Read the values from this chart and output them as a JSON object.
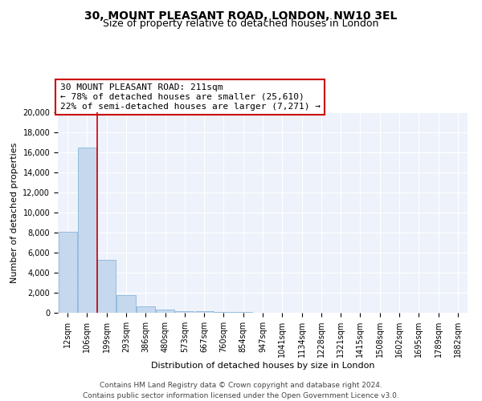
{
  "title": "30, MOUNT PLEASANT ROAD, LONDON, NW10 3EL",
  "subtitle": "Size of property relative to detached houses in London",
  "xlabel": "Distribution of detached houses by size in London",
  "ylabel": "Number of detached properties",
  "bar_color": "#c5d8ee",
  "bar_edge_color": "#7aaed4",
  "categories": [
    "12sqm",
    "106sqm",
    "199sqm",
    "293sqm",
    "386sqm",
    "480sqm",
    "573sqm",
    "667sqm",
    "760sqm",
    "854sqm",
    "947sqm",
    "1041sqm",
    "1134sqm",
    "1228sqm",
    "1321sqm",
    "1415sqm",
    "1508sqm",
    "1602sqm",
    "1695sqm",
    "1789sqm",
    "1882sqm"
  ],
  "values": [
    8100,
    16500,
    5300,
    1800,
    650,
    320,
    180,
    140,
    100,
    80,
    0,
    0,
    0,
    0,
    0,
    0,
    0,
    0,
    0,
    0,
    0
  ],
  "ylim": [
    0,
    20000
  ],
  "yticks": [
    0,
    2000,
    4000,
    6000,
    8000,
    10000,
    12000,
    14000,
    16000,
    18000,
    20000
  ],
  "vline_x_index": 2,
  "vline_color": "#cc0000",
  "annotation_line1": "30 MOUNT PLEASANT ROAD: 211sqm",
  "annotation_line2": "← 78% of detached houses are smaller (25,610)",
  "annotation_line3": "22% of semi-detached houses are larger (7,271) →",
  "annotation_box_color": "#cc0000",
  "footer_line1": "Contains HM Land Registry data © Crown copyright and database right 2024.",
  "footer_line2": "Contains public sector information licensed under the Open Government Licence v3.0.",
  "background_color": "#eef2fb",
  "grid_color": "#ffffff",
  "title_fontsize": 10,
  "subtitle_fontsize": 9,
  "axis_label_fontsize": 8,
  "tick_fontsize": 7,
  "annotation_fontsize": 8,
  "footer_fontsize": 6.5
}
